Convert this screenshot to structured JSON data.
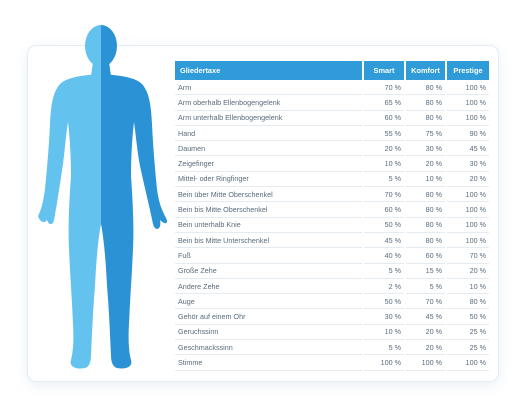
{
  "table": {
    "headers": [
      "Gliedertaxe",
      "Smart",
      "Komfort",
      "Prestige"
    ],
    "rows": [
      [
        "Arm",
        "70 %",
        "80 %",
        "100 %"
      ],
      [
        "Arm oberhalb Ellenbogengelenk",
        "65 %",
        "80 %",
        "100 %"
      ],
      [
        "Arm unterhalb Ellenbogengelenk",
        "60 %",
        "80 %",
        "100 %"
      ],
      [
        "Hand",
        "55 %",
        "75 %",
        "90 %"
      ],
      [
        "Daumen",
        "20 %",
        "30 %",
        "45 %"
      ],
      [
        "Zeigefinger",
        "10 %",
        "20 %",
        "30 %"
      ],
      [
        "Mittel- oder Ringfinger",
        "5 %",
        "10 %",
        "20 %"
      ],
      [
        "Bein über Mitte Oberschenkel",
        "70 %",
        "80 %",
        "100 %"
      ],
      [
        "Bein bis Mitte Oberschenkel",
        "60 %",
        "80 %",
        "100 %"
      ],
      [
        "Bein unterhalb Knie",
        "50 %",
        "80 %",
        "100 %"
      ],
      [
        "Bein bis Mitte Unterschenkel",
        "45 %",
        "80 %",
        "100 %"
      ],
      [
        "Fuß",
        "40 %",
        "60 %",
        "70 %"
      ],
      [
        "Große Zehe",
        "5 %",
        "15 %",
        "20 %"
      ],
      [
        "Andere Zehe",
        "2 %",
        "5 %",
        "10 %"
      ],
      [
        "Auge",
        "50 %",
        "70 %",
        "80 %"
      ],
      [
        "Gehör auf einem Ohr",
        "30 %",
        "45 %",
        "50 %"
      ],
      [
        "Geruchssinn",
        "10 %",
        "20 %",
        "25 %"
      ],
      [
        "Geschmackssinn",
        "5 %",
        "20 %",
        "25 %"
      ],
      [
        "Stimme",
        "100 %",
        "100 %",
        "100 %"
      ]
    ]
  },
  "colors": {
    "header_blue": "#2f9bd8",
    "figure_light": "#63c2ee",
    "figure_dark": "#2b93d5"
  },
  "figure": {
    "icon": "human-body-silhouette-icon"
  }
}
